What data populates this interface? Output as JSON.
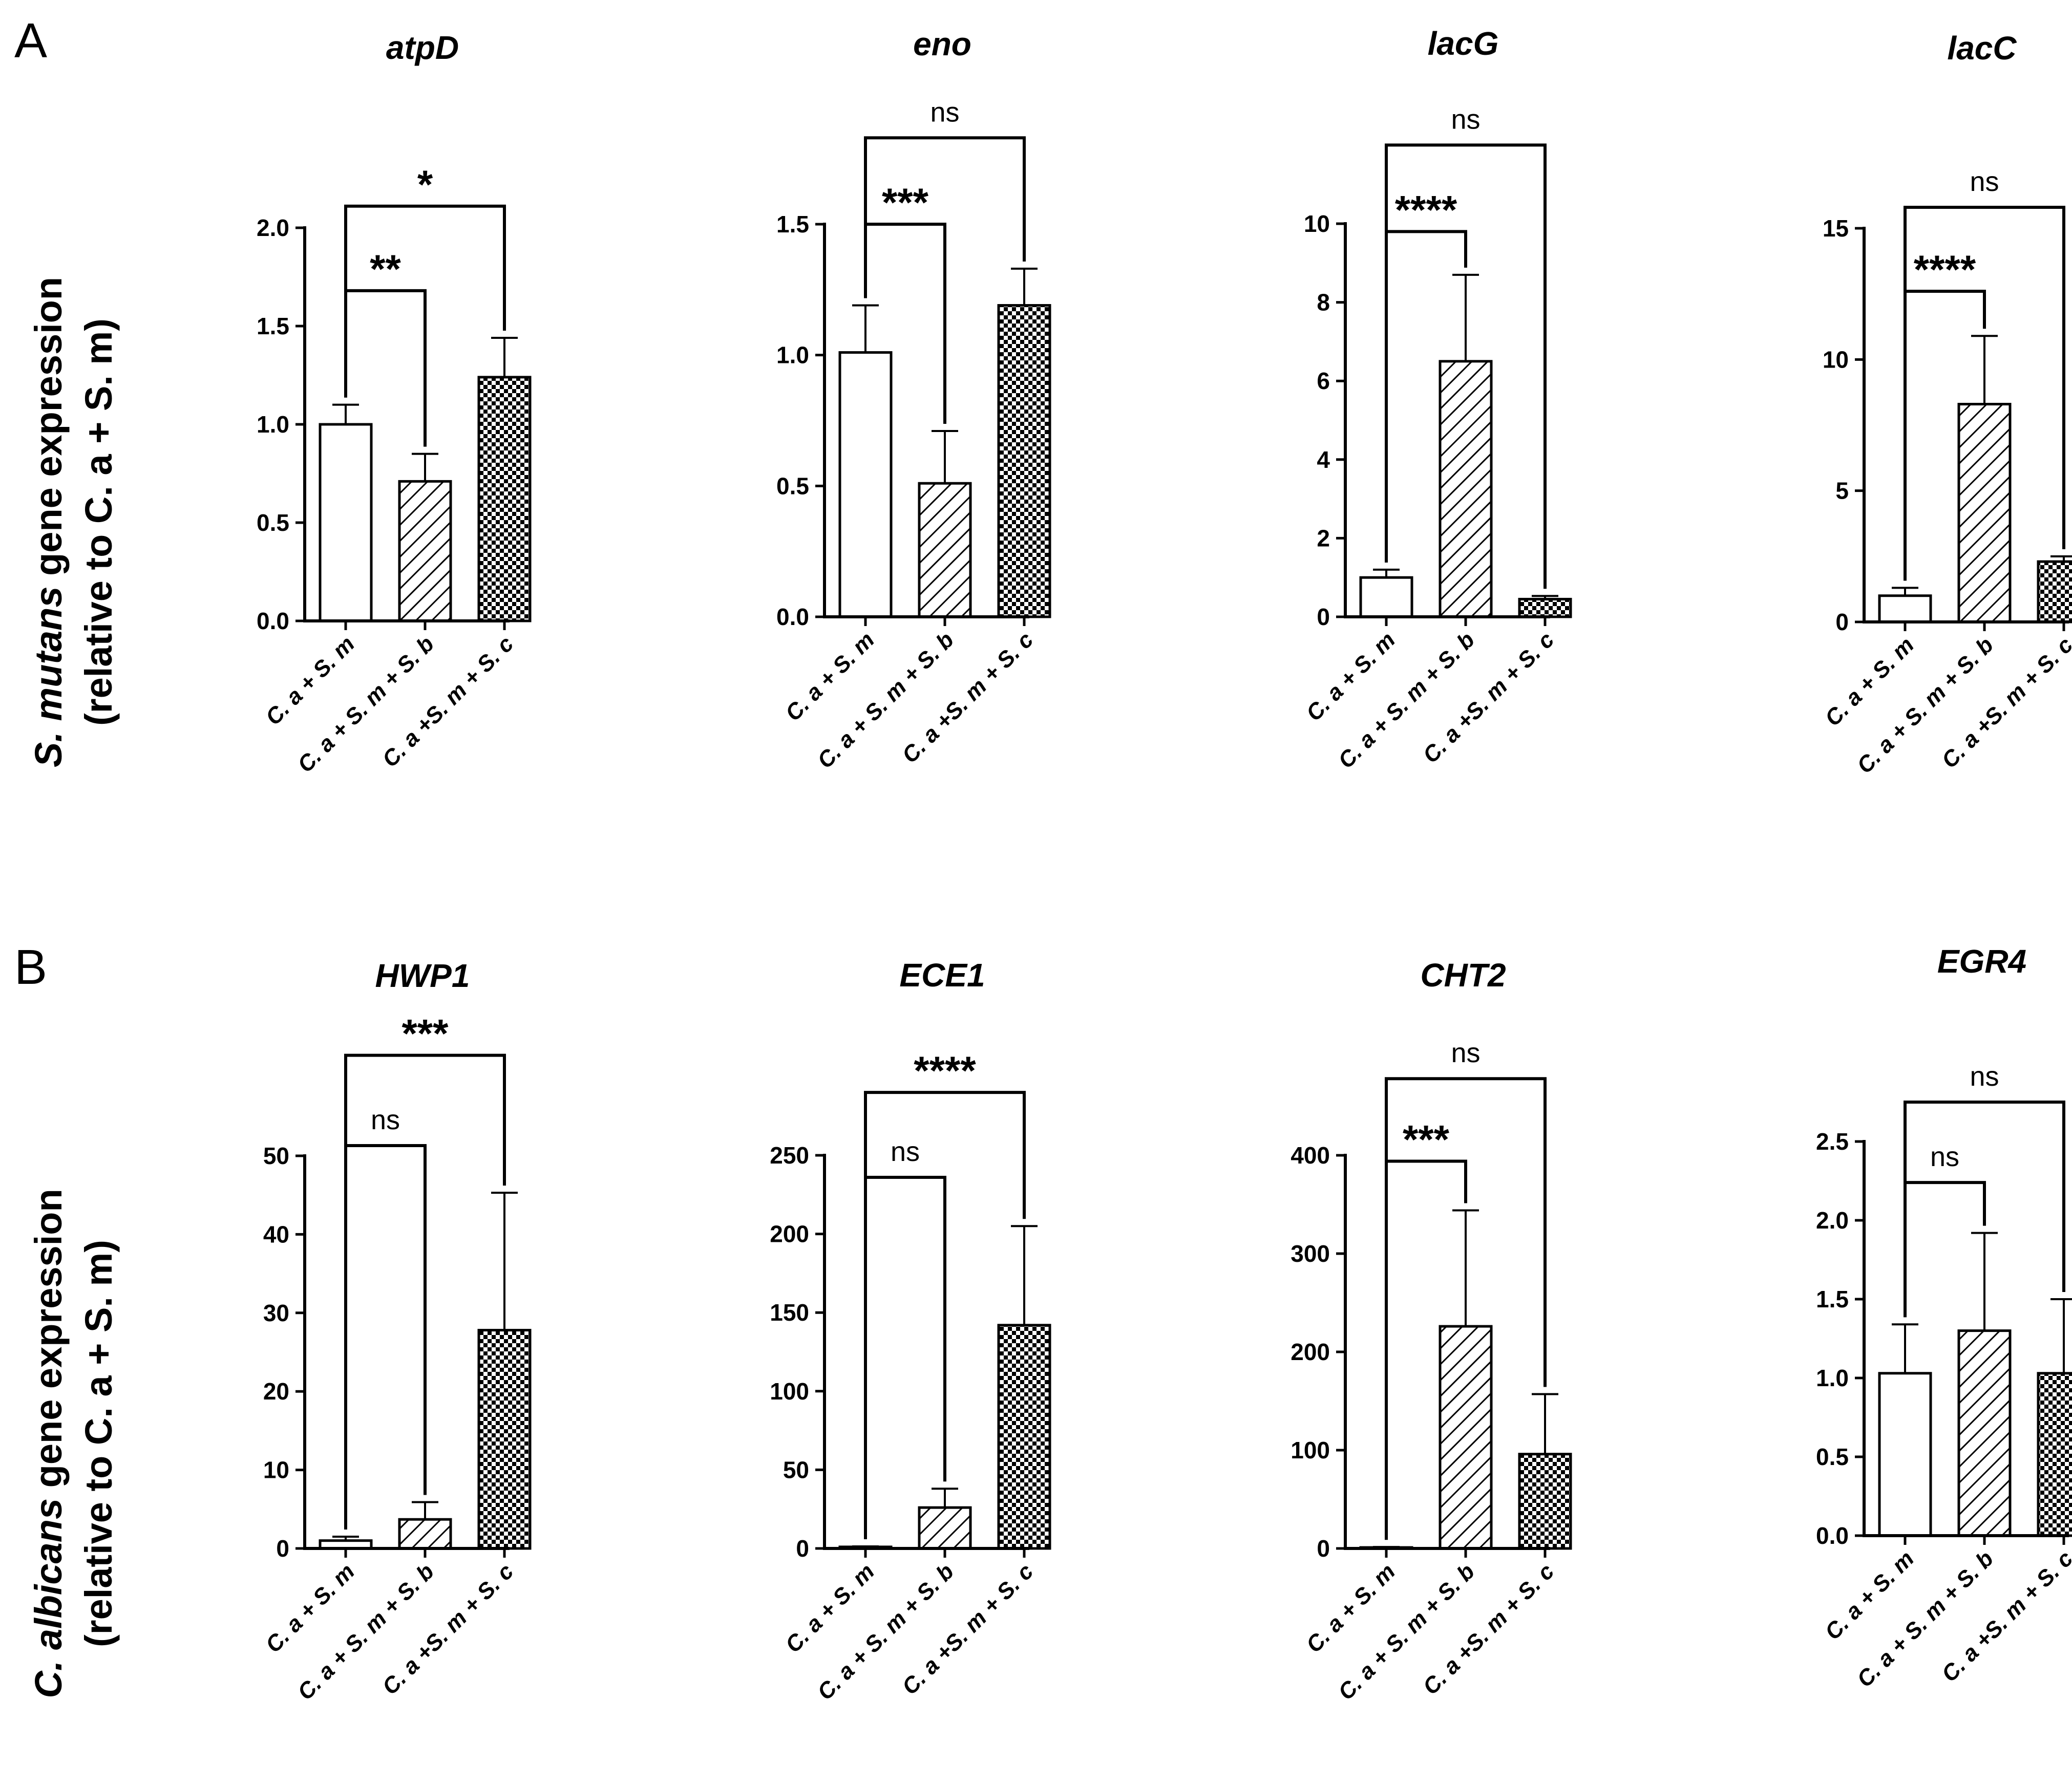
{
  "panels": [
    {
      "letter": "A",
      "ylabel_italic": "S. mutans",
      "ylabel_rest": " gene expression",
      "ylabel_line2": "(relative to C. a + S. m)"
    },
    {
      "letter": "B",
      "ylabel_italic": "C. albicans",
      "ylabel_rest": " gene expression",
      "ylabel_line2": "(relative to C. a + S. m)"
    }
  ],
  "chart_data": [
    {
      "type": "bar",
      "title": "atpD",
      "categories": [
        "C. a + S. m",
        "C. a + S. m + S. b",
        "C. a +S. m + S. c"
      ],
      "values": [
        1.0,
        0.71,
        1.24
      ],
      "errors": [
        0.1,
        0.14,
        0.2
      ],
      "ylim": [
        0,
        2.0
      ],
      "yticks": [
        "0.0",
        "0.5",
        "1.0",
        "1.5",
        "2.0"
      ],
      "comparisons": [
        {
          "from": 0,
          "to": 1,
          "label": "**",
          "at": 1.68
        },
        {
          "from": 0,
          "to": 2,
          "label": "*",
          "at": 2.11
        }
      ]
    },
    {
      "type": "bar",
      "title": "eno",
      "categories": [
        "C. a + S. m",
        "C. a + S. m + S. b",
        "C. a +S. m + S. c"
      ],
      "values": [
        1.01,
        0.51,
        1.19
      ],
      "errors": [
        0.18,
        0.2,
        0.14
      ],
      "ylim": [
        0,
        1.5
      ],
      "yticks": [
        "0.0",
        "0.5",
        "1.0",
        "1.5"
      ],
      "comparisons": [
        {
          "from": 0,
          "to": 1,
          "label": "***",
          "at": 1.5
        },
        {
          "from": 0,
          "to": 2,
          "label": "ns",
          "at": 1.83
        }
      ]
    },
    {
      "type": "bar",
      "title": "lacG",
      "categories": [
        "C. a + S. m",
        "C. a + S. m + S. b",
        "C. a +S. m + S. c"
      ],
      "values": [
        1.0,
        6.5,
        0.45
      ],
      "errors": [
        0.2,
        2.2,
        0.08
      ],
      "ylim": [
        0,
        10
      ],
      "yticks": [
        "0",
        "2",
        "4",
        "6",
        "8",
        "10"
      ],
      "comparisons": [
        {
          "from": 0,
          "to": 1,
          "label": "****",
          "at": 9.8
        },
        {
          "from": 0,
          "to": 2,
          "label": "ns",
          "at": 12.0
        }
      ]
    },
    {
      "type": "bar",
      "title": "lacC",
      "categories": [
        "C. a + S. m",
        "C. a + S. m + S. b",
        "C. a +S. m + S. c"
      ],
      "values": [
        1.0,
        8.3,
        2.3
      ],
      "errors": [
        0.3,
        2.6,
        0.2
      ],
      "ylim": [
        0,
        15
      ],
      "yticks": [
        "0",
        "5",
        "10",
        "15"
      ],
      "comparisons": [
        {
          "from": 0,
          "to": 1,
          "label": "****",
          "at": 12.6
        },
        {
          "from": 0,
          "to": 2,
          "label": "ns",
          "at": 15.8
        }
      ]
    },
    {
      "type": "bar",
      "title": "HWP1",
      "categories": [
        "C. a + S. m",
        "C. a + S. m + S. b",
        "C. a +S. m + S. c"
      ],
      "values": [
        1.0,
        3.7,
        27.8
      ],
      "errors": [
        0.5,
        2.2,
        17.5
      ],
      "ylim": [
        0,
        50
      ],
      "yticks": [
        "0",
        "10",
        "20",
        "30",
        "40",
        "50"
      ],
      "comparisons": [
        {
          "from": 0,
          "to": 1,
          "label": "ns",
          "at": 51.3
        },
        {
          "from": 0,
          "to": 2,
          "label": "***",
          "at": 62.8
        }
      ]
    },
    {
      "type": "bar",
      "title": "ECE1",
      "categories": [
        "C. a + S. m",
        "C. a + S. m + S. b",
        "C. a +S. m + S. c"
      ],
      "values": [
        1.0,
        26,
        142
      ],
      "errors": [
        0.3,
        12,
        63
      ],
      "ylim": [
        0,
        250
      ],
      "yticks": [
        "0",
        "50",
        "100",
        "150",
        "200",
        "250"
      ],
      "comparisons": [
        {
          "from": 0,
          "to": 1,
          "label": "ns",
          "at": 236
        },
        {
          "from": 0,
          "to": 2,
          "label": "****",
          "at": 290
        }
      ]
    },
    {
      "type": "bar",
      "title": "CHT2",
      "categories": [
        "C. a + S. m",
        "C. a + S. m + S. b",
        "C. a +S. m + S. c"
      ],
      "values": [
        1.0,
        226,
        96
      ],
      "errors": [
        0.5,
        118,
        61
      ],
      "ylim": [
        0,
        400
      ],
      "yticks": [
        "0",
        "100",
        "200",
        "300",
        "400"
      ],
      "comparisons": [
        {
          "from": 0,
          "to": 1,
          "label": "***",
          "at": 394
        },
        {
          "from": 0,
          "to": 2,
          "label": "ns",
          "at": 478
        }
      ]
    },
    {
      "type": "bar",
      "title": "EGR4",
      "categories": [
        "C. a + S. m",
        "C. a + S. m + S. b",
        "C. a +S. m + S. c"
      ],
      "values": [
        1.03,
        1.3,
        1.03
      ],
      "errors": [
        0.31,
        0.62,
        0.47
      ],
      "ylim": [
        0,
        2.5
      ],
      "yticks": [
        "0.0",
        "0.5",
        "1.0",
        "1.5",
        "2.0",
        "2.5"
      ],
      "comparisons": [
        {
          "from": 0,
          "to": 1,
          "label": "ns",
          "at": 2.24
        },
        {
          "from": 0,
          "to": 2,
          "label": "ns",
          "at": 2.75
        }
      ]
    }
  ]
}
